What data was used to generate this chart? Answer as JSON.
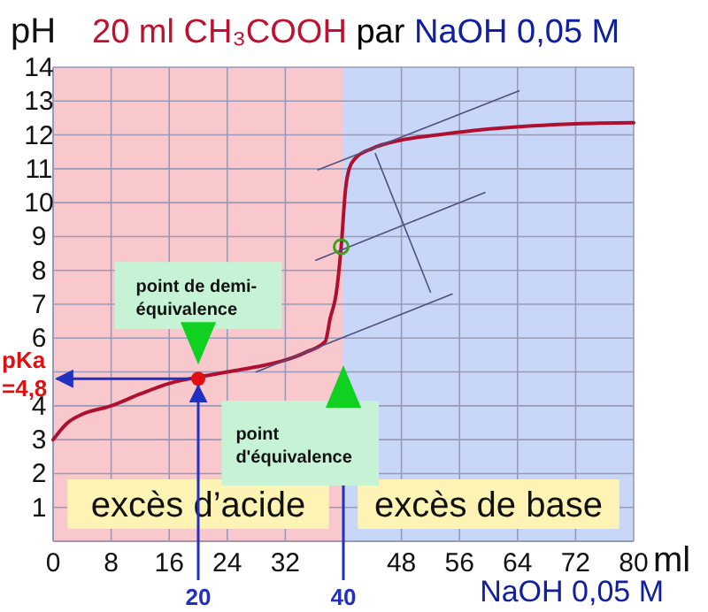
{
  "chart_data": {
    "type": "line",
    "title": "20 ml CH₃COOH par NaOH 0,05 M",
    "ylabel": "pH",
    "xlabel": "ml",
    "xlim": [
      0,
      80
    ],
    "ylim": [
      0,
      14
    ],
    "xticks": [
      0,
      8,
      16,
      24,
      32,
      48,
      56,
      64,
      72,
      80
    ],
    "yticks": [
      1,
      2,
      3,
      4,
      {
        "value": 5,
        "label": null
      },
      6,
      7,
      8,
      9,
      10,
      11,
      12,
      13,
      14
    ],
    "grid": true,
    "series": [
      {
        "type": "line",
        "color": "#b01030",
        "x": [
          0,
          2,
          4,
          8,
          12,
          16,
          20,
          24,
          28,
          32,
          35,
          37.5,
          38.2,
          39,
          39.7,
          40.3,
          40.8,
          41.6,
          44,
          48,
          53,
          58,
          66,
          72,
          80
        ],
        "values": [
          3,
          3.5,
          3.75,
          4,
          4.35,
          4.66,
          4.85,
          5,
          5.15,
          5.35,
          5.6,
          5.9,
          6.6,
          7.3,
          8.7,
          10.4,
          11,
          11.3,
          11.6,
          11.85,
          12,
          12.13,
          12.27,
          12.33,
          12.36
        ]
      },
      {
        "type": "line",
        "color": "#505080",
        "x": [
          36.5,
          64.2
        ],
        "values": [
          10.97,
          13.3
        ]
      },
      {
        "type": "line",
        "color": "#505080",
        "x": [
          36.2,
          59.5
        ],
        "values": [
          8.3,
          10.3
        ]
      },
      {
        "type": "line",
        "color": "#505080",
        "x": [
          28,
          55
        ],
        "values": [
          5,
          7.3
        ]
      },
      {
        "type": "line",
        "color": "#505080",
        "x": [
          44.4,
          52
        ],
        "values": [
          11.45,
          7.36
        ]
      },
      {
        "type": "scatter",
        "color": "#e01010",
        "x": [
          20
        ],
        "values": [
          4.8
        ],
        "marker": "circle"
      },
      {
        "type": "scatter",
        "color": "#40a020",
        "x": [
          39.7
        ],
        "values": [
          8.7
        ],
        "marker": "circle"
      }
    ],
    "bands": [
      {
        "axis": "x",
        "from": 0,
        "to": 40,
        "label": "excès d’acide",
        "color": "#f8c8cc"
      },
      {
        "axis": "x",
        "from": 40,
        "to": 80,
        "label": "excès de base",
        "color": "#c8d6f8"
      }
    ],
    "ref_lines": [
      {
        "axis": "y",
        "value": 4.8,
        "label": "pKa =4,8",
        "color": "#2030c0"
      },
      {
        "axis": "x",
        "value": 20,
        "label": "20",
        "color": "#2030c0"
      },
      {
        "axis": "x",
        "value": 40,
        "label": "40",
        "color": "#2030c0"
      }
    ],
    "annotations": [
      "point de demi-équivalence",
      "point d'équivalence",
      "NaOH 0,05 M"
    ]
  }
}
